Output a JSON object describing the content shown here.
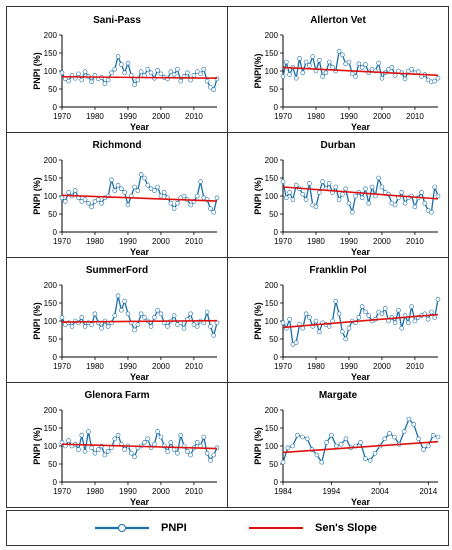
{
  "legend": {
    "pnpi_label": "PNPI",
    "sen_label": "Sen's Slope",
    "pnpi_color": "#1a6fa8",
    "sen_color": "#e01010"
  },
  "chart_data": [
    {
      "type": "line",
      "title": "Sani-Pass",
      "xlabel": "Year",
      "ylabel": "PNPI (%)",
      "xlim": [
        1970,
        2017
      ],
      "ylim": [
        0,
        200
      ],
      "xticks": [
        1970,
        1980,
        1990,
        2000,
        2010
      ],
      "yticks": [
        0,
        50,
        100,
        150,
        200
      ],
      "x_start": 1970,
      "series": [
        {
          "name": "PNPI",
          "values": [
            95,
            78,
            72,
            88,
            80,
            92,
            75,
            98,
            85,
            70,
            88,
            78,
            82,
            65,
            75,
            95,
            105,
            140,
            118,
            95,
            122,
            88,
            62,
            75,
            98,
            88,
            105,
            95,
            80,
            102,
            92,
            82,
            78,
            98,
            90,
            105,
            72,
            85,
            95,
            75,
            88,
            98,
            92,
            105,
            72,
            55,
            48,
            78
          ]
        }
      ],
      "trend": [
        {
          "name": "Sen's Slope",
          "x": [
            1970,
            2017
          ],
          "y": [
            84,
            80
          ]
        }
      ]
    },
    {
      "type": "line",
      "title": "Allerton Vet",
      "xlabel": "Year",
      "ylabel": "PNPI(%)",
      "xlim": [
        1970,
        2017
      ],
      "ylim": [
        0,
        200
      ],
      "xticks": [
        1970,
        1980,
        1990,
        2000,
        2010
      ],
      "yticks": [
        0,
        50,
        100,
        150,
        200
      ],
      "x_start": 1970,
      "series": [
        {
          "name": "PNPI",
          "values": [
            85,
            125,
            90,
            110,
            80,
            135,
            95,
            125,
            115,
            140,
            100,
            130,
            85,
            95,
            125,
            110,
            100,
            155,
            145,
            120,
            125,
            92,
            85,
            120,
            110,
            118,
            95,
            105,
            100,
            122,
            80,
            95,
            105,
            110,
            88,
            100,
            95,
            78,
            100,
            105,
            95,
            98,
            85,
            90,
            75,
            70,
            72,
            80
          ]
        }
      ],
      "trend": [
        {
          "name": "Sen's Slope",
          "x": [
            1970,
            2017
          ],
          "y": [
            110,
            88
          ]
        }
      ]
    },
    {
      "type": "line",
      "title": "Richmond",
      "xlabel": "Year",
      "ylabel": "PNPI (%)",
      "xlim": [
        1970,
        2017
      ],
      "ylim": [
        0,
        200
      ],
      "xticks": [
        1970,
        1980,
        1990,
        2000,
        2010
      ],
      "yticks": [
        0,
        50,
        100,
        150,
        200
      ],
      "x_start": 1970,
      "series": [
        {
          "name": "PNPI",
          "values": [
            95,
            85,
            110,
            100,
            115,
            95,
            85,
            90,
            80,
            70,
            85,
            90,
            80,
            95,
            100,
            145,
            115,
            130,
            120,
            110,
            75,
            100,
            125,
            115,
            160,
            150,
            130,
            120,
            115,
            125,
            100,
            110,
            95,
            80,
            65,
            80,
            95,
            100,
            90,
            75,
            85,
            100,
            140,
            95,
            90,
            65,
            55,
            95
          ]
        }
      ],
      "trend": [
        {
          "name": "Sen's Slope",
          "x": [
            1970,
            2017
          ],
          "y": [
            102,
            86
          ]
        }
      ]
    },
    {
      "type": "line",
      "title": "Durban",
      "xlabel": "Year",
      "ylabel": "PNPI (%)",
      "xlim": [
        1970,
        2017
      ],
      "ylim": [
        0,
        200
      ],
      "xticks": [
        1970,
        1980,
        1990,
        2000,
        2010
      ],
      "yticks": [
        0,
        50,
        100,
        150,
        200
      ],
      "x_start": 1970,
      "series": [
        {
          "name": "PNPI",
          "values": [
            140,
            95,
            110,
            90,
            130,
            120,
            105,
            90,
            135,
            75,
            70,
            110,
            140,
            120,
            135,
            110,
            125,
            90,
            105,
            120,
            80,
            55,
            100,
            110,
            95,
            120,
            80,
            125,
            100,
            150,
            125,
            110,
            105,
            80,
            75,
            95,
            110,
            80,
            95,
            100,
            70,
            95,
            110,
            80,
            60,
            55,
            125,
            100
          ]
        }
      ],
      "trend": [
        {
          "name": "Sen's Slope",
          "x": [
            1970,
            2017
          ],
          "y": [
            125,
            92
          ]
        }
      ]
    },
    {
      "type": "line",
      "title": "SummerFord",
      "xlabel": "Year",
      "ylabel": "PNPI (%)",
      "xlim": [
        1970,
        2017
      ],
      "ylim": [
        0,
        200
      ],
      "xticks": [
        1970,
        1980,
        1990,
        2000,
        2010
      ],
      "yticks": [
        0,
        50,
        100,
        150,
        200
      ],
      "x_start": 1970,
      "series": [
        {
          "name": "PNPI",
          "values": [
            110,
            90,
            95,
            85,
            100,
            95,
            110,
            85,
            95,
            90,
            120,
            95,
            80,
            100,
            85,
            95,
            115,
            170,
            130,
            155,
            120,
            95,
            75,
            90,
            120,
            110,
            100,
            85,
            110,
            130,
            120,
            95,
            85,
            100,
            115,
            90,
            95,
            80,
            105,
            120,
            90,
            85,
            100,
            95,
            125,
            85,
            60,
            95
          ]
        }
      ],
      "trend": [
        {
          "name": "Sen's Slope",
          "x": [
            1970,
            2017
          ],
          "y": [
            97,
            101
          ]
        }
      ]
    },
    {
      "type": "line",
      "title": "Franklin Pol",
      "xlabel": "Year",
      "ylabel": "PNPI (%)",
      "xlim": [
        1970,
        2017
      ],
      "ylim": [
        0,
        200
      ],
      "xticks": [
        1970,
        1980,
        1990,
        2000,
        2010
      ],
      "yticks": [
        0,
        50,
        100,
        150,
        200
      ],
      "x_start": 1970,
      "series": [
        {
          "name": "PNPI",
          "values": [
            95,
            80,
            105,
            35,
            40,
            90,
            80,
            120,
            110,
            85,
            100,
            70,
            95,
            90,
            85,
            100,
            155,
            120,
            70,
            50,
            80,
            100,
            95,
            110,
            140,
            125,
            115,
            100,
            105,
            125,
            120,
            135,
            100,
            110,
            95,
            130,
            80,
            115,
            95,
            140,
            100,
            110,
            115,
            120,
            105,
            125,
            110,
            160
          ]
        }
      ],
      "trend": [
        {
          "name": "Sen's Slope",
          "x": [
            1970,
            2017
          ],
          "y": [
            82,
            118
          ]
        }
      ]
    },
    {
      "type": "line",
      "title": "Glenora Farm",
      "xlabel": "Year",
      "ylabel": "PNPI (%)",
      "xlim": [
        1970,
        2017
      ],
      "ylim": [
        0,
        200
      ],
      "xticks": [
        1970,
        1980,
        1990,
        2000,
        2010
      ],
      "yticks": [
        0,
        50,
        100,
        150,
        200
      ],
      "x_start": 1970,
      "series": [
        {
          "name": "PNPI",
          "values": [
            110,
            100,
            115,
            100,
            105,
            90,
            130,
            85,
            140,
            95,
            80,
            90,
            100,
            75,
            85,
            95,
            120,
            130,
            105,
            90,
            100,
            80,
            70,
            95,
            100,
            110,
            120,
            95,
            105,
            140,
            125,
            100,
            85,
            110,
            90,
            80,
            130,
            100,
            85,
            75,
            95,
            110,
            100,
            125,
            80,
            60,
            75,
            95
          ]
        }
      ],
      "trend": [
        {
          "name": "Sen's Slope",
          "x": [
            1970,
            2017
          ],
          "y": [
            105,
            93
          ]
        }
      ]
    },
    {
      "type": "line",
      "title": "Margate",
      "xlabel": "Year",
      "ylabel": "PNPI (%)",
      "xlim": [
        1984,
        2016
      ],
      "ylim": [
        0,
        200
      ],
      "xticks": [
        1984,
        1994,
        2004,
        2014
      ],
      "yticks": [
        0,
        50,
        100,
        150,
        200
      ],
      "x_start": 1984,
      "series": [
        {
          "name": "PNPI",
          "values": [
            55,
            95,
            100,
            130,
            125,
            120,
            90,
            75,
            55,
            110,
            130,
            100,
            105,
            120,
            95,
            100,
            110,
            65,
            60,
            80,
            100,
            120,
            135,
            125,
            105,
            140,
            175,
            160,
            120,
            90,
            100,
            130,
            125
          ]
        }
      ],
      "trend": [
        {
          "name": "Sen's Slope",
          "x": [
            1984,
            2016
          ],
          "y": [
            82,
            112
          ]
        }
      ]
    }
  ]
}
